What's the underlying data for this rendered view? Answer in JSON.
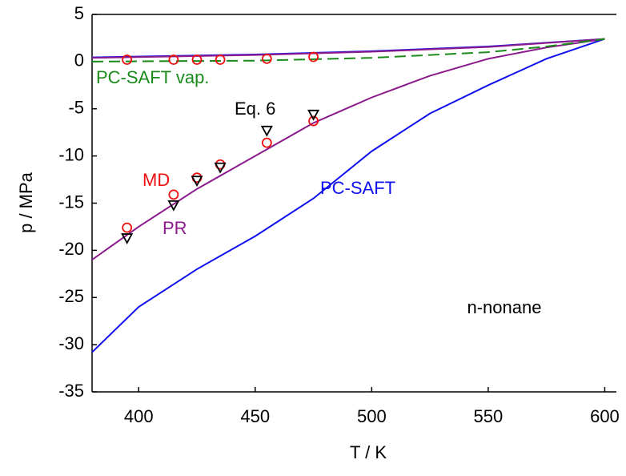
{
  "chart_data": {
    "type": "line",
    "x_label": "T / K",
    "y_label": "p / MPa",
    "xlim": [
      380,
      605
    ],
    "ylim": [
      -35,
      5
    ],
    "xticks": [
      400,
      450,
      500,
      550,
      600
    ],
    "yticks": [
      5,
      0,
      -5,
      -10,
      -15,
      -20,
      -25,
      -30,
      -35
    ],
    "annotations": [
      "n-nonane"
    ],
    "series": [
      {
        "name": "PC-SAFT",
        "color": "#1010ee",
        "x": [
          380,
          400,
          425,
          450,
          475,
          500,
          525,
          550,
          575,
          600
        ],
        "values": [
          -30.8,
          -26,
          -22,
          -18.5,
          -14.5,
          -9.5,
          -5.5,
          -2.5,
          0.3,
          2.4
        ]
      },
      {
        "color": "#1010ee",
        "x": [
          380,
          450,
          500,
          550,
          600
        ],
        "values": [
          0.45,
          0.75,
          1.1,
          1.6,
          2.4
        ]
      },
      {
        "name": "PR",
        "color": "#8b1a8b",
        "x": [
          380,
          400,
          425,
          450,
          475,
          500,
          525,
          550,
          575,
          600
        ],
        "values": [
          -21,
          -17.5,
          -13.5,
          -10,
          -6.5,
          -3.8,
          -1.5,
          0.3,
          1.5,
          2.4
        ]
      },
      {
        "color": "#8b1a8b",
        "x": [
          380,
          450,
          500,
          550,
          600
        ],
        "values": [
          0.4,
          0.7,
          1.05,
          1.55,
          2.4
        ]
      },
      {
        "name": "PC-SAFT vap.",
        "color": "#1a8a1a",
        "line": "dashed",
        "x": [
          380,
          450,
          500,
          550,
          575,
          600
        ],
        "values": [
          0,
          0.1,
          0.4,
          1.0,
          1.6,
          2.4
        ]
      },
      {
        "name": "MD",
        "color": "#ee1010",
        "marker": "circle",
        "x": [
          395,
          415,
          425,
          435,
          455,
          475,
          395,
          415,
          425,
          435,
          455,
          475
        ],
        "values": [
          0.2,
          0.2,
          0.2,
          0.2,
          0.3,
          0.5,
          -17.6,
          -14.1,
          -12.3,
          -10.9,
          -8.6,
          -6.3
        ]
      },
      {
        "name": "Eq. 6",
        "color": "#000000",
        "marker": "triangle",
        "x": [
          395,
          415,
          425,
          435,
          455,
          475
        ],
        "values": [
          -18.7,
          -15.2,
          -12.6,
          -11.2,
          -7.3,
          -5.6
        ]
      }
    ]
  }
}
